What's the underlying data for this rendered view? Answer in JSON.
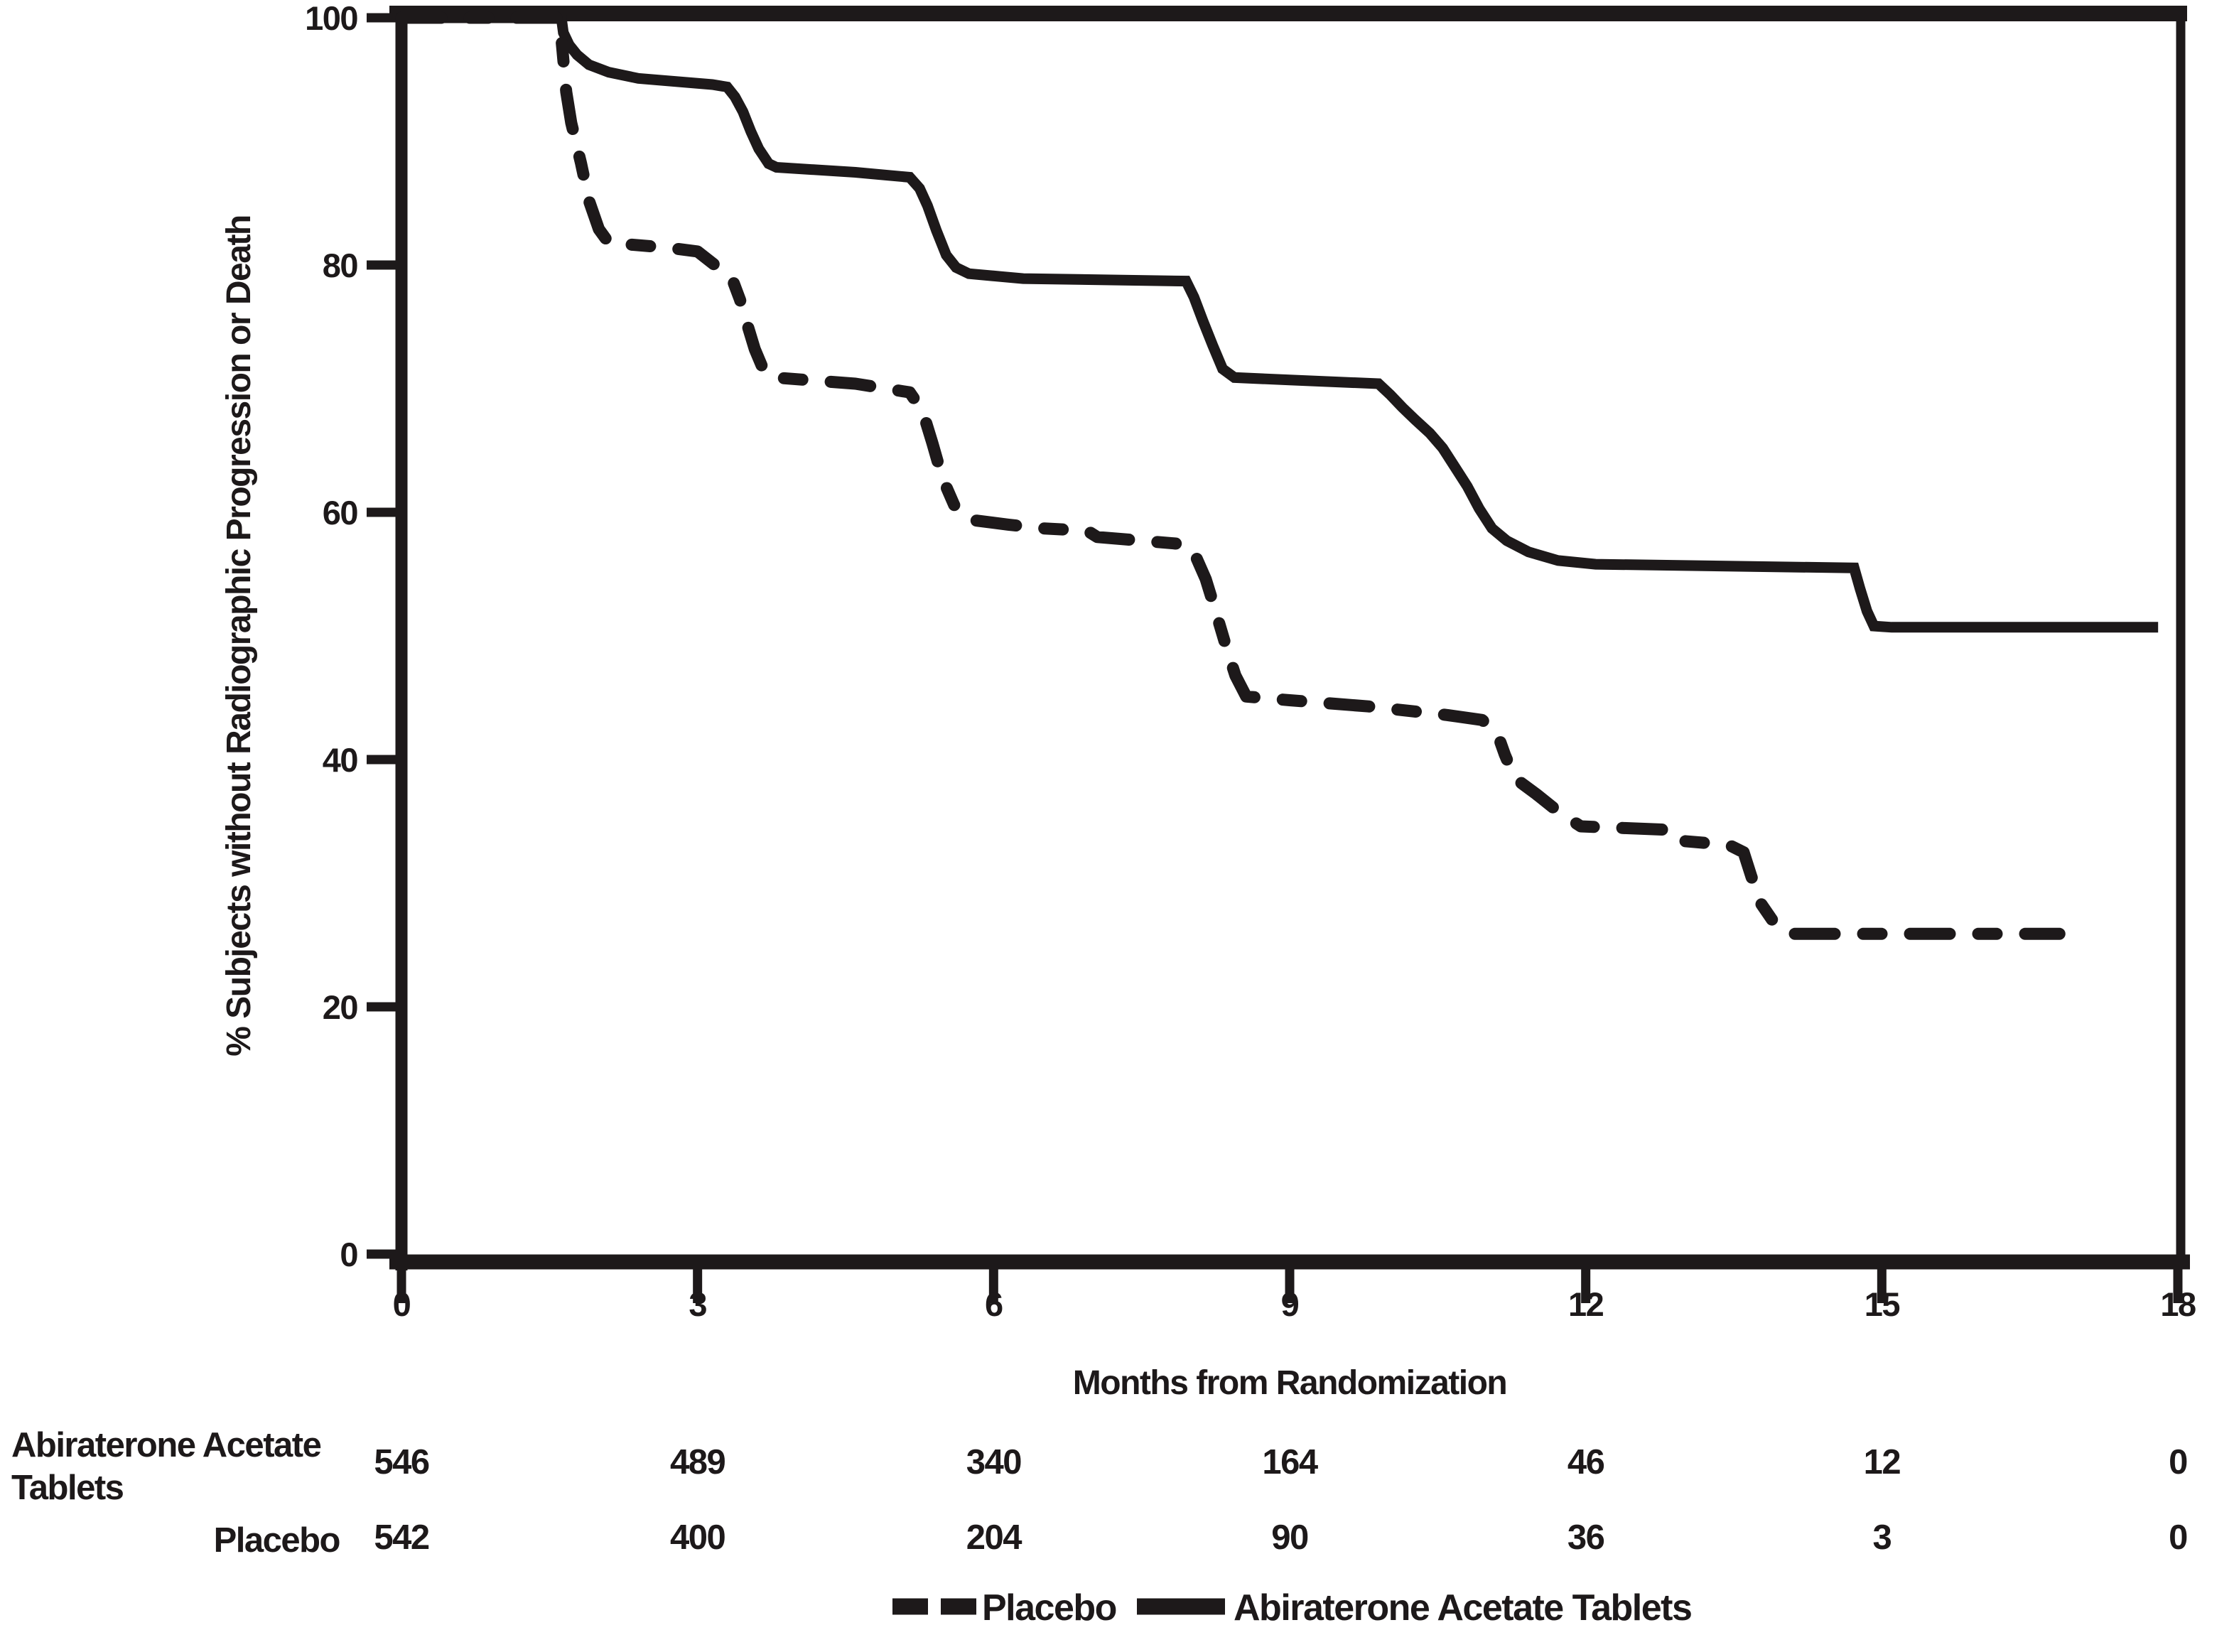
{
  "chart_data": {
    "type": "line",
    "subtype": "kaplan-meier-step",
    "title": "",
    "xlabel": "Months from Randomization",
    "ylabel": "% Subjects without Radiographic Progression or Death",
    "xlim": [
      0,
      18
    ],
    "ylim": [
      0,
      100
    ],
    "x_ticks": [
      0,
      3,
      6,
      9,
      12,
      15,
      18
    ],
    "y_ticks": [
      0,
      20,
      40,
      60,
      80,
      100
    ],
    "grid": "off",
    "legend_position": "bottom-center",
    "series": [
      {
        "name": "Abiraterone Acetate Tablets",
        "style": "solid",
        "points": [
          [
            0,
            100
          ],
          [
            1.62,
            100
          ],
          [
            1.64,
            98.8
          ],
          [
            1.7,
            97.8
          ],
          [
            1.78,
            97.0
          ],
          [
            1.9,
            96.2
          ],
          [
            2.1,
            95.6
          ],
          [
            2.4,
            95.1
          ],
          [
            3.15,
            94.6
          ],
          [
            3.3,
            94.4
          ],
          [
            3.38,
            93.6
          ],
          [
            3.46,
            92.4
          ],
          [
            3.54,
            90.8
          ],
          [
            3.62,
            89.4
          ],
          [
            3.72,
            88.2
          ],
          [
            3.8,
            87.9
          ],
          [
            4.6,
            87.5
          ],
          [
            5.15,
            87.1
          ],
          [
            5.25,
            86.2
          ],
          [
            5.33,
            84.8
          ],
          [
            5.42,
            82.8
          ],
          [
            5.52,
            80.8
          ],
          [
            5.62,
            79.8
          ],
          [
            5.75,
            79.3
          ],
          [
            6.3,
            78.9
          ],
          [
            7.95,
            78.7
          ],
          [
            8.03,
            77.4
          ],
          [
            8.12,
            75.5
          ],
          [
            8.22,
            73.5
          ],
          [
            8.32,
            71.6
          ],
          [
            8.44,
            70.9
          ],
          [
            9.0,
            70.7
          ],
          [
            9.9,
            70.4
          ],
          [
            10.02,
            69.5
          ],
          [
            10.14,
            68.5
          ],
          [
            10.27,
            67.5
          ],
          [
            10.42,
            66.4
          ],
          [
            10.55,
            65.2
          ],
          [
            10.68,
            63.6
          ],
          [
            10.8,
            62.1
          ],
          [
            10.92,
            60.3
          ],
          [
            11.05,
            58.7
          ],
          [
            11.2,
            57.7
          ],
          [
            11.42,
            56.8
          ],
          [
            11.72,
            56.1
          ],
          [
            12.1,
            55.8
          ],
          [
            14.72,
            55.5
          ],
          [
            14.78,
            53.8
          ],
          [
            14.85,
            52.0
          ],
          [
            14.92,
            50.8
          ],
          [
            15.1,
            50.7
          ],
          [
            17.8,
            50.7
          ]
        ]
      },
      {
        "name": "Placebo",
        "style": "dashed",
        "points": [
          [
            0,
            100
          ],
          [
            1.6,
            100
          ],
          [
            1.63,
            97.5
          ],
          [
            1.67,
            94.0
          ],
          [
            1.72,
            91.5
          ],
          [
            1.82,
            88.2
          ],
          [
            1.9,
            85.2
          ],
          [
            2.0,
            82.9
          ],
          [
            2.1,
            81.8
          ],
          [
            2.7,
            81.4
          ],
          [
            3.0,
            81.1
          ],
          [
            3.35,
            78.9
          ],
          [
            3.43,
            77.2
          ],
          [
            3.5,
            75.3
          ],
          [
            3.58,
            73.2
          ],
          [
            3.68,
            71.3
          ],
          [
            3.78,
            70.9
          ],
          [
            4.6,
            70.4
          ],
          [
            5.15,
            69.7
          ],
          [
            5.28,
            68.2
          ],
          [
            5.38,
            65.6
          ],
          [
            5.48,
            62.8
          ],
          [
            5.6,
            60.6
          ],
          [
            5.75,
            59.4
          ],
          [
            6.15,
            59.0
          ],
          [
            6.5,
            58.7
          ],
          [
            6.95,
            58.5
          ],
          [
            7.05,
            58.0
          ],
          [
            7.5,
            57.7
          ],
          [
            7.95,
            57.4
          ],
          [
            8.05,
            56.4
          ],
          [
            8.15,
            54.6
          ],
          [
            8.25,
            52.0
          ],
          [
            8.35,
            49.3
          ],
          [
            8.45,
            46.8
          ],
          [
            8.56,
            45.1
          ],
          [
            9.0,
            44.8
          ],
          [
            9.8,
            44.3
          ],
          [
            10.6,
            43.6
          ],
          [
            10.95,
            43.2
          ],
          [
            11.1,
            42.2
          ],
          [
            11.18,
            40.4
          ],
          [
            11.28,
            38.5
          ],
          [
            11.5,
            37.2
          ],
          [
            11.72,
            35.8
          ],
          [
            11.95,
            34.6
          ],
          [
            12.9,
            34.3
          ],
          [
            13.0,
            33.4
          ],
          [
            13.45,
            33.1
          ],
          [
            13.6,
            32.5
          ],
          [
            13.68,
            30.5
          ],
          [
            13.78,
            28.3
          ],
          [
            13.9,
            26.9
          ],
          [
            14.0,
            26.1
          ],
          [
            14.1,
            25.9
          ],
          [
            16.8,
            25.9
          ]
        ]
      }
    ]
  },
  "at_risk_table": {
    "rows": [
      {
        "label": "Abiraterone Acetate Tablets",
        "label_lines": [
          "Abiraterone Acetate",
          "Tablets"
        ],
        "counts": [
          "546",
          "489",
          "340",
          "164",
          "46",
          "12",
          "0"
        ]
      },
      {
        "label": "Placebo",
        "label_lines": [
          "Placebo"
        ],
        "counts": [
          "542",
          "400",
          "204",
          "90",
          "36",
          "3",
          "0"
        ]
      }
    ]
  },
  "legend": [
    {
      "label": "Placebo",
      "style": "dashed"
    },
    {
      "label": "Abiraterone Acetate Tablets",
      "style": "solid"
    }
  ],
  "colors": {
    "ink": "#1d191a",
    "background": "#ffffff"
  }
}
